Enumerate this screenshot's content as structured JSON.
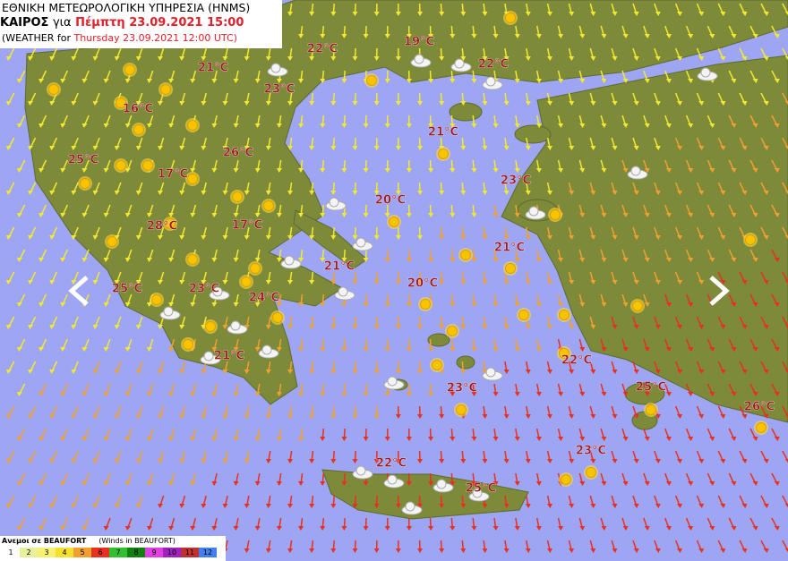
{
  "header": {
    "agency": "ΕΘΝΙΚΗ ΜΕΤΕΩΡΟΛΟΓΙΚΗ ΥΠΗΡΕΣΙΑ (HNMS)",
    "weather_word": "ΚΑΙΡΟΣ",
    "for_word": "για",
    "local_time": "Πέμπτη 23.09.2021 15:00",
    "english_prefix": "(WEATHER for",
    "utc_time": "Thursday 23.09.2021 12:00 UTC)"
  },
  "temperatures": [
    "22°C",
    "19°C",
    "22°C",
    "21°C",
    "23°C",
    "16°C",
    "21°C",
    "26°C",
    "25°C",
    "17°C",
    "23°C",
    "20°C",
    "28°C",
    "17°C",
    "21°C",
    "21°C",
    "20°C",
    "25°C",
    "23°C",
    "24°C",
    "21°C",
    "22°C",
    "23°C",
    "25°C",
    "26°C",
    "23°C",
    "22°C",
    "25°C"
  ],
  "legend": {
    "title": "Ανεμοι σε BEAUFORT",
    "subtitle": "(Winds in BEAUFORT)",
    "scale": [
      {
        "level": 1,
        "color": "#ffffff"
      },
      {
        "level": 2,
        "color": "#e8f0a0"
      },
      {
        "level": 3,
        "color": "#f7f070"
      },
      {
        "level": 4,
        "color": "#f5e030"
      },
      {
        "level": 5,
        "color": "#f0a030"
      },
      {
        "level": 6,
        "color": "#e83020"
      },
      {
        "level": 7,
        "color": "#30c030"
      },
      {
        "level": 8,
        "color": "#108010"
      },
      {
        "level": 9,
        "color": "#e040e0"
      },
      {
        "level": 10,
        "color": "#a020c0"
      },
      {
        "level": 11,
        "color": "#c03030"
      },
      {
        "level": 12,
        "color": "#4080f0"
      }
    ]
  }
}
